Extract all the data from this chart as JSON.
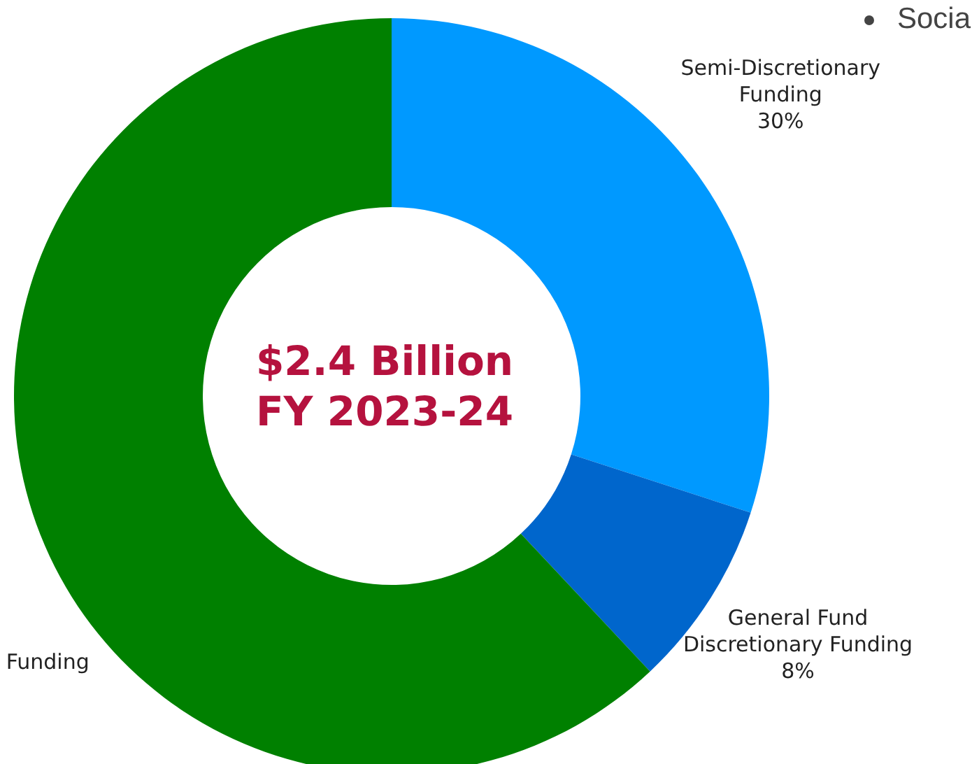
{
  "chart_data": {
    "type": "donut",
    "title": "$2.4 Billion",
    "subtitle": "FY 2023-24",
    "categories": [
      "Semi-Discretionary Funding",
      "General Fund Discretionary Funding",
      "Funding"
    ],
    "values": [
      30,
      8,
      62
    ],
    "colors": [
      "#0099ff",
      "#0066cc",
      "#008000"
    ],
    "value_labels": [
      "30%",
      "8%",
      null
    ],
    "annotations": [
      "Socia"
    ]
  }
}
